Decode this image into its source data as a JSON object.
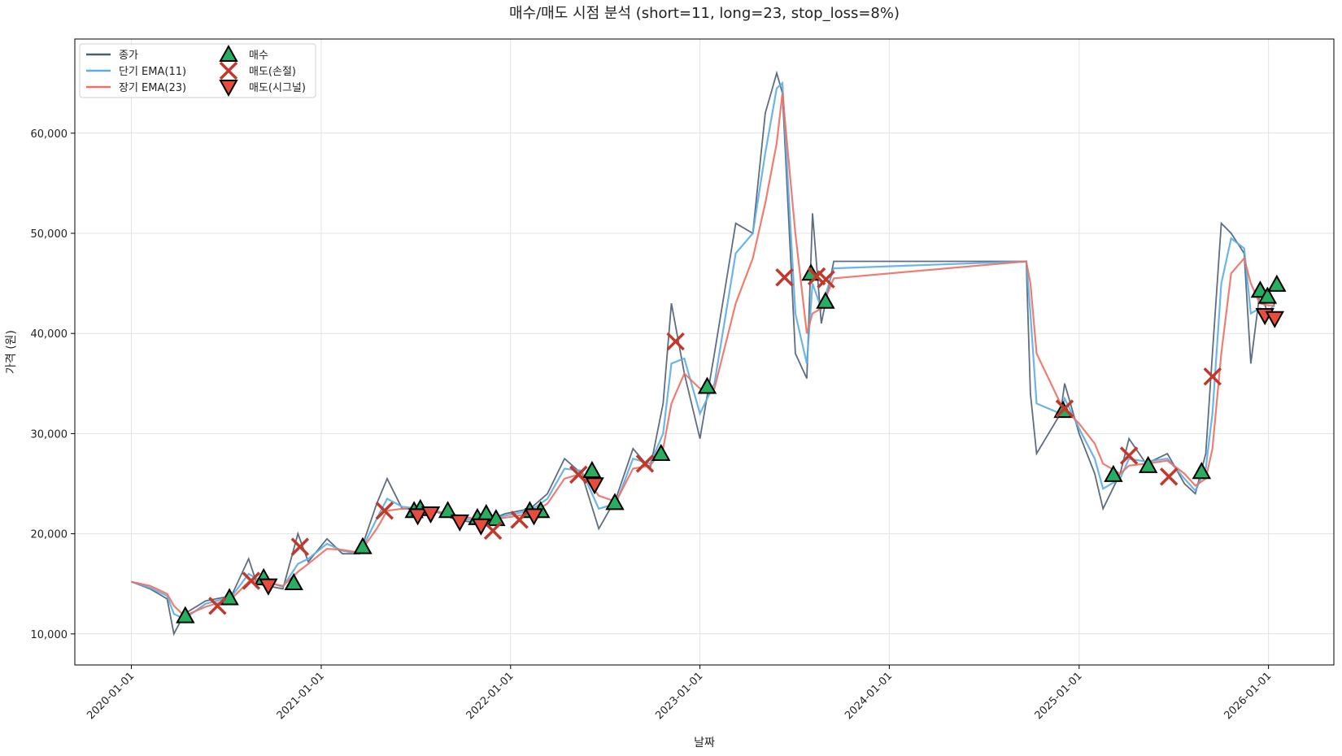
{
  "chart_data": {
    "type": "line",
    "title": "매수/매도 시점 분석 (short=11, long=23, stop_loss=8%)",
    "xlabel": "날짜",
    "ylabel": "가격 (원)",
    "xlim": [
      "2019-09-14",
      "2026-05-07"
    ],
    "ylim": [
      6900,
      69400
    ],
    "xticks": [
      "2020-01-01",
      "2021-01-01",
      "2022-01-01",
      "2023-01-01",
      "2024-01-01",
      "2025-01-01",
      "2026-01-01"
    ],
    "yticks": [
      {
        "value": 10000,
        "label": "10,000"
      },
      {
        "value": 20000,
        "label": "20,000"
      },
      {
        "value": 30000,
        "label": "30,000"
      },
      {
        "value": 40000,
        "label": "40,000"
      },
      {
        "value": 50000,
        "label": "50,000"
      },
      {
        "value": 60000,
        "label": "60,000"
      }
    ],
    "grid": true,
    "legend": "upper left",
    "x": [
      "2020-01-01",
      "2020-02-06",
      "2020-03-10",
      "2020-03-23",
      "2020-04-12",
      "2020-05-23",
      "2020-07-12",
      "2020-08-14",
      "2020-08-30",
      "2020-10-19",
      "2020-11-17",
      "2020-12-07",
      "2021-01-12",
      "2021-02-11",
      "2021-03-16",
      "2021-04-18",
      "2021-05-08",
      "2021-06-06",
      "2021-07-26",
      "2021-09-13",
      "2021-11-02",
      "2021-12-21",
      "2022-02-08",
      "2022-03-13",
      "2022-04-15",
      "2022-05-18",
      "2022-06-20",
      "2022-07-23",
      "2022-08-25",
      "2022-09-27",
      "2022-10-22",
      "2022-11-07",
      "2022-12-02",
      "2023-01-01",
      "2023-01-29",
      "2023-03-11",
      "2023-04-13",
      "2023-05-07",
      "2023-05-29",
      "2023-06-09",
      "2023-07-04",
      "2023-07-26",
      "2023-08-06",
      "2023-08-23",
      "2023-09-16",
      "2024-09-21",
      "2024-09-29",
      "2024-10-11",
      "2024-11-26",
      "2024-12-04",
      "2025-01-01",
      "2025-01-31",
      "2025-02-16",
      "2025-03-21",
      "2025-04-07",
      "2025-05-10",
      "2025-06-20",
      "2025-07-23",
      "2025-08-13",
      "2025-09-02",
      "2025-09-15",
      "2025-10-02",
      "2025-10-21",
      "2025-11-15",
      "2025-11-28",
      "2025-12-15",
      "2026-01-01",
      "2026-01-13"
    ],
    "series": [
      {
        "name": "종가",
        "kind": "line",
        "color": "#4d5d73",
        "values": [
          15200,
          14500,
          13500,
          10000,
          12000,
          13300,
          13800,
          17500,
          15000,
          14500,
          20000,
          17200,
          19500,
          18000,
          18000,
          23000,
          25500,
          22500,
          22500,
          21500,
          21000,
          22000,
          22500,
          24000,
          27500,
          26000,
          20500,
          23500,
          28500,
          26500,
          33000,
          43000,
          36000,
          29500,
          38000,
          51000,
          50000,
          62000,
          66000,
          64000,
          38000,
          35500,
          52000,
          41000,
          47200,
          47200,
          34000,
          28000,
          32000,
          35000,
          30000,
          26000,
          22500,
          26000,
          29500,
          27000,
          28000,
          25000,
          24000,
          28000,
          38000,
          51000,
          50000,
          48000,
          37000,
          44000,
          42000,
          43000
        ]
      },
      {
        "name": "단기 EMA(11)",
        "kind": "line",
        "color": "#5dade2",
        "values": [
          15200,
          14600,
          13800,
          12000,
          11500,
          13000,
          13700,
          16000,
          15500,
          14700,
          17000,
          17500,
          19000,
          18300,
          18000,
          21500,
          23500,
          22700,
          22400,
          21700,
          21200,
          21800,
          22300,
          23500,
          26500,
          26300,
          22500,
          23000,
          27500,
          27000,
          30000,
          37000,
          37500,
          32000,
          35000,
          48000,
          50000,
          58000,
          64500,
          65000,
          42000,
          37000,
          45000,
          42500,
          46500,
          47200,
          42000,
          33000,
          32000,
          33500,
          30500,
          27500,
          24500,
          25500,
          27500,
          27200,
          27500,
          25500,
          24300,
          26500,
          32000,
          45000,
          49500,
          48500,
          42000,
          42500,
          42300,
          42800
        ]
      },
      {
        "name": "장기 EMA(23)",
        "kind": "line",
        "color": "#ec7063",
        "values": [
          15200,
          14800,
          14000,
          12800,
          11800,
          12700,
          13500,
          15200,
          15300,
          14800,
          16200,
          17000,
          18500,
          18400,
          18100,
          20500,
          22300,
          22500,
          22400,
          21900,
          21400,
          21600,
          22000,
          23000,
          25500,
          26000,
          23800,
          23200,
          26500,
          26800,
          28500,
          33000,
          36000,
          34500,
          34500,
          43000,
          47500,
          53000,
          59000,
          64000,
          50000,
          40000,
          42000,
          42500,
          45500,
          47200,
          45000,
          38000,
          33000,
          32500,
          31000,
          29000,
          27000,
          26000,
          26800,
          27000,
          27300,
          26000,
          24800,
          25500,
          28500,
          38000,
          46000,
          47500,
          45000,
          43000,
          42800,
          42800
        ]
      },
      {
        "name": "매수",
        "kind": "marker",
        "marker": "triangle-up",
        "color": "#27ae60",
        "x": [
          "2020-04-14",
          "2020-07-08",
          "2020-09-12",
          "2020-11-09",
          "2021-03-22",
          "2021-06-29",
          "2021-07-11",
          "2021-09-02",
          "2021-10-29",
          "2021-11-15",
          "2021-12-04",
          "2022-02-07",
          "2022-02-28",
          "2022-06-07",
          "2022-07-21",
          "2022-10-18",
          "2023-01-15",
          "2023-08-03",
          "2023-08-31",
          "2024-12-01",
          "2025-03-08",
          "2025-05-14",
          "2025-08-25",
          "2025-12-16",
          "2025-12-30",
          "2026-01-17"
        ],
        "values": [
          11800,
          13600,
          15600,
          15100,
          18700,
          22300,
          22500,
          22300,
          21600,
          22000,
          21500,
          22300,
          22300,
          26300,
          23100,
          28000,
          34700,
          46000,
          43200,
          32300,
          25900,
          26800,
          26200,
          44300,
          43700,
          44900
        ]
      },
      {
        "name": "매도(손절)",
        "kind": "marker",
        "marker": "x",
        "color": "#c0392b",
        "x": [
          "2020-06-15",
          "2020-08-19",
          "2020-11-21",
          "2021-05-03",
          "2021-11-28",
          "2022-01-18",
          "2022-05-12",
          "2022-09-17",
          "2022-11-15",
          "2023-06-13",
          "2023-08-14",
          "2023-09-01",
          "2024-12-04",
          "2025-04-07",
          "2025-06-23",
          "2025-09-15"
        ],
        "values": [
          12800,
          15300,
          18700,
          22300,
          20300,
          21400,
          25900,
          27000,
          39200,
          45600,
          45700,
          45400,
          32500,
          27800,
          25700,
          35700
        ]
      },
      {
        "name": "매도(시그널)",
        "kind": "marker",
        "marker": "triangle-down",
        "color": "#e74c3c",
        "x": [
          "2020-09-21",
          "2021-07-06",
          "2021-07-31",
          "2021-09-25",
          "2021-11-05",
          "2022-02-15",
          "2022-06-12",
          "2025-12-25",
          "2026-01-13"
        ],
        "values": [
          14800,
          21800,
          22000,
          21200,
          20800,
          21800,
          24900,
          41800,
          41500
        ]
      }
    ]
  }
}
